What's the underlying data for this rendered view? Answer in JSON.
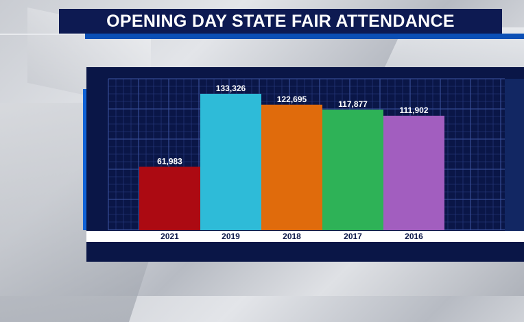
{
  "title": "OPENING DAY STATE FAIR ATTENDANCE",
  "colors": {
    "title_bg": "#0d1a52",
    "panel_bg": "#0a1647",
    "accent": "#1062d6",
    "grid": "#2b3f86"
  },
  "chart_data": {
    "type": "bar",
    "title": "OPENING DAY STATE FAIR ATTENDANCE",
    "categories": [
      "2021",
      "2019",
      "2018",
      "2017",
      "2016"
    ],
    "values": [
      61983,
      133326,
      122695,
      117877,
      111902
    ],
    "value_labels": [
      "61,983",
      "133,326",
      "122,695",
      "117,877",
      "111,902"
    ],
    "bar_colors": [
      "#ac0a12",
      "#2ebbd8",
      "#e06b0c",
      "#2eb257",
      "#a25ebf"
    ],
    "ylim": [
      0,
      148000
    ],
    "grid": true,
    "legend": "none"
  }
}
